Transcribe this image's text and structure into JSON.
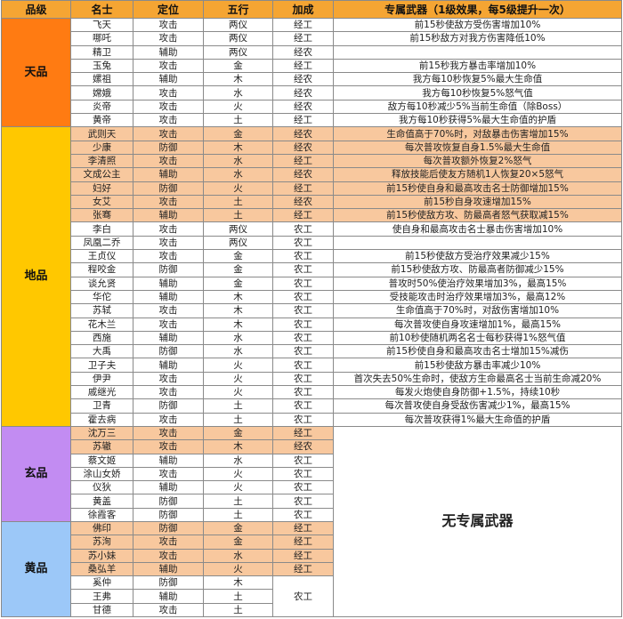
{
  "header": {
    "tier": "品级",
    "name": "名士",
    "role": "定位",
    "element": "五行",
    "bonus": "加成",
    "weapon": "专属武器（1级效果，每5级提升一次）"
  },
  "no_weapon_text": "无专属武器",
  "colors": {
    "header": "#f5a533",
    "highlight": "#f8c89e"
  },
  "tiers": [
    {
      "name": "天品",
      "color": "#ff7b12",
      "has_weapon": true,
      "rows": [
        {
          "name": "飞天",
          "role": "攻击",
          "element": "两仪",
          "bonus": "经工",
          "weapon": "前15秒使敌方受伤害增加10%",
          "highlight": false
        },
        {
          "name": "哪吒",
          "role": "攻击",
          "element": "两仪",
          "bonus": "经工",
          "weapon": "前15秒敌方对我方伤害降低10%",
          "highlight": false
        },
        {
          "name": "精卫",
          "role": "辅助",
          "element": "两仪",
          "bonus": "经农",
          "weapon": "",
          "highlight": false
        },
        {
          "name": "玉兔",
          "role": "攻击",
          "element": "金",
          "bonus": "经工",
          "weapon": "前15秒我方暴击率增加10%",
          "highlight": false
        },
        {
          "name": "嫘祖",
          "role": "辅助",
          "element": "木",
          "bonus": "经农",
          "weapon": "我方每10秒恢复5%最大生命值",
          "highlight": false
        },
        {
          "name": "嫦娥",
          "role": "攻击",
          "element": "水",
          "bonus": "经农",
          "weapon": "我方每10秒恢复5%怒气值",
          "highlight": false
        },
        {
          "name": "炎帝",
          "role": "攻击",
          "element": "火",
          "bonus": "经农",
          "weapon": "敌方每10秒减少5%当前生命值（除Boss）",
          "highlight": false
        },
        {
          "name": "黄帝",
          "role": "攻击",
          "element": "土",
          "bonus": "经工",
          "weapon": "我方每10秒获得5%最大生命值的护盾",
          "highlight": false
        }
      ]
    },
    {
      "name": "地品",
      "color": "#ffc800",
      "has_weapon": true,
      "rows": [
        {
          "name": "武则天",
          "role": "攻击",
          "element": "金",
          "bonus": "经农",
          "weapon": "生命值高于70%时，对敌暴击伤害增加15%",
          "highlight": true
        },
        {
          "name": "少康",
          "role": "防御",
          "element": "木",
          "bonus": "经农",
          "weapon": "每次普攻恢复自身1.5%最大生命值",
          "highlight": true
        },
        {
          "name": "李清照",
          "role": "攻击",
          "element": "水",
          "bonus": "经工",
          "weapon": "每次普攻额外恢复2%怒气",
          "highlight": true
        },
        {
          "name": "文成公主",
          "role": "辅助",
          "element": "水",
          "bonus": "经农",
          "weapon": "释放技能后使友方随机1人恢复20×5怒气",
          "highlight": true
        },
        {
          "name": "妇好",
          "role": "防御",
          "element": "火",
          "bonus": "经工",
          "weapon": "前15秒使自身和最高攻击名士防御增加15%",
          "highlight": true
        },
        {
          "name": "女艾",
          "role": "攻击",
          "element": "土",
          "bonus": "经农",
          "weapon": "前15秒自身攻速增加15%",
          "highlight": true
        },
        {
          "name": "张骞",
          "role": "辅助",
          "element": "土",
          "bonus": "经工",
          "weapon": "前15秒使敌方攻、防最高者怒气获取减15%",
          "highlight": true
        },
        {
          "name": "李白",
          "role": "攻击",
          "element": "两仪",
          "bonus": "农工",
          "weapon": "使自身和最高攻击名士暴击伤害增加10%",
          "highlight": false
        },
        {
          "name": "凤凰二乔",
          "role": "攻击",
          "element": "两仪",
          "bonus": "农工",
          "weapon": "",
          "highlight": false
        },
        {
          "name": "王贞仪",
          "role": "攻击",
          "element": "金",
          "bonus": "农工",
          "weapon": "前15秒使敌方受治疗效果减少15%",
          "highlight": false
        },
        {
          "name": "程咬金",
          "role": "防御",
          "element": "金",
          "bonus": "农工",
          "weapon": "前15秒使敌方攻、防最高者防御减少15%",
          "highlight": false
        },
        {
          "name": "谈允贤",
          "role": "辅助",
          "element": "金",
          "bonus": "农工",
          "weapon": "普攻时50%使治疗效果增加3%，最高15%",
          "highlight": false
        },
        {
          "name": "华佗",
          "role": "辅助",
          "element": "木",
          "bonus": "农工",
          "weapon": "受技能攻击时治疗效果增加3%，最高12%",
          "highlight": false
        },
        {
          "name": "苏轼",
          "role": "攻击",
          "element": "木",
          "bonus": "农工",
          "weapon": "生命值高于70%时，对敌伤害增加10%",
          "highlight": false
        },
        {
          "name": "花木兰",
          "role": "攻击",
          "element": "木",
          "bonus": "农工",
          "weapon": "每次普攻使自身攻速增加1%，最高15%",
          "highlight": false
        },
        {
          "name": "西施",
          "role": "辅助",
          "element": "水",
          "bonus": "农工",
          "weapon": "前10秒使随机两名名士每秒获得1%怒气值",
          "highlight": false
        },
        {
          "name": "大禹",
          "role": "防御",
          "element": "水",
          "bonus": "农工",
          "weapon": "前15秒使自身和最高攻击名士增加15%减伤",
          "highlight": false
        },
        {
          "name": "卫子夫",
          "role": "辅助",
          "element": "火",
          "bonus": "农工",
          "weapon": "前15秒使敌方暴击率减少10%",
          "highlight": false
        },
        {
          "name": "伊尹",
          "role": "攻击",
          "element": "火",
          "bonus": "农工",
          "weapon": "首次失去50%生命时，使敌方生命最高名士当前生命减20%",
          "highlight": false
        },
        {
          "name": "戚继光",
          "role": "攻击",
          "element": "火",
          "bonus": "农工",
          "weapon": "每发火炮使自身防御+1.5%，持续10秒",
          "highlight": false
        },
        {
          "name": "卫青",
          "role": "防御",
          "element": "土",
          "bonus": "农工",
          "weapon": "每次普攻使自身受敌伤害减少1%，最高15%",
          "highlight": false
        },
        {
          "name": "霍去病",
          "role": "攻击",
          "element": "土",
          "bonus": "农工",
          "weapon": "每次普攻获得1%最大生命值的护盾",
          "highlight": false
        }
      ]
    },
    {
      "name": "玄品",
      "color": "#c28cf2",
      "has_weapon": false,
      "rows": [
        {
          "name": "沈万三",
          "role": "攻击",
          "element": "金",
          "bonus": "经工",
          "highlight": true
        },
        {
          "name": "苏辙",
          "role": "攻击",
          "element": "木",
          "bonus": "经农",
          "highlight": true
        },
        {
          "name": "蔡文姬",
          "role": "辅助",
          "element": "水",
          "bonus": "农工",
          "highlight": false
        },
        {
          "name": "涂山女娇",
          "role": "攻击",
          "element": "火",
          "bonus": "农工",
          "highlight": false
        },
        {
          "name": "仪狄",
          "role": "辅助",
          "element": "火",
          "bonus": "农工",
          "highlight": false
        },
        {
          "name": "黄盖",
          "role": "防御",
          "element": "土",
          "bonus": "农工",
          "highlight": false
        },
        {
          "name": "徐霞客",
          "role": "防御",
          "element": "土",
          "bonus": "农工",
          "highlight": false
        }
      ]
    },
    {
      "name": "黄品",
      "color": "#9cc8f8",
      "has_weapon": false,
      "shared_bonus": "农工",
      "rows": [
        {
          "name": "佛印",
          "role": "防御",
          "element": "金",
          "bonus": "经工",
          "highlight": true
        },
        {
          "name": "苏洵",
          "role": "攻击",
          "element": "金",
          "bonus": "经工",
          "highlight": true
        },
        {
          "name": "苏小妹",
          "role": "攻击",
          "element": "水",
          "bonus": "经工",
          "highlight": true
        },
        {
          "name": "桑弘羊",
          "role": "辅助",
          "element": "火",
          "bonus": "经工",
          "highlight": true
        },
        {
          "name": "奚仲",
          "role": "防御",
          "element": "木",
          "bonus": null,
          "highlight": false
        },
        {
          "name": "王弗",
          "role": "辅助",
          "element": "土",
          "bonus": null,
          "highlight": false
        },
        {
          "name": "甘德",
          "role": "攻击",
          "element": "土",
          "bonus": null,
          "highlight": false
        }
      ]
    }
  ]
}
